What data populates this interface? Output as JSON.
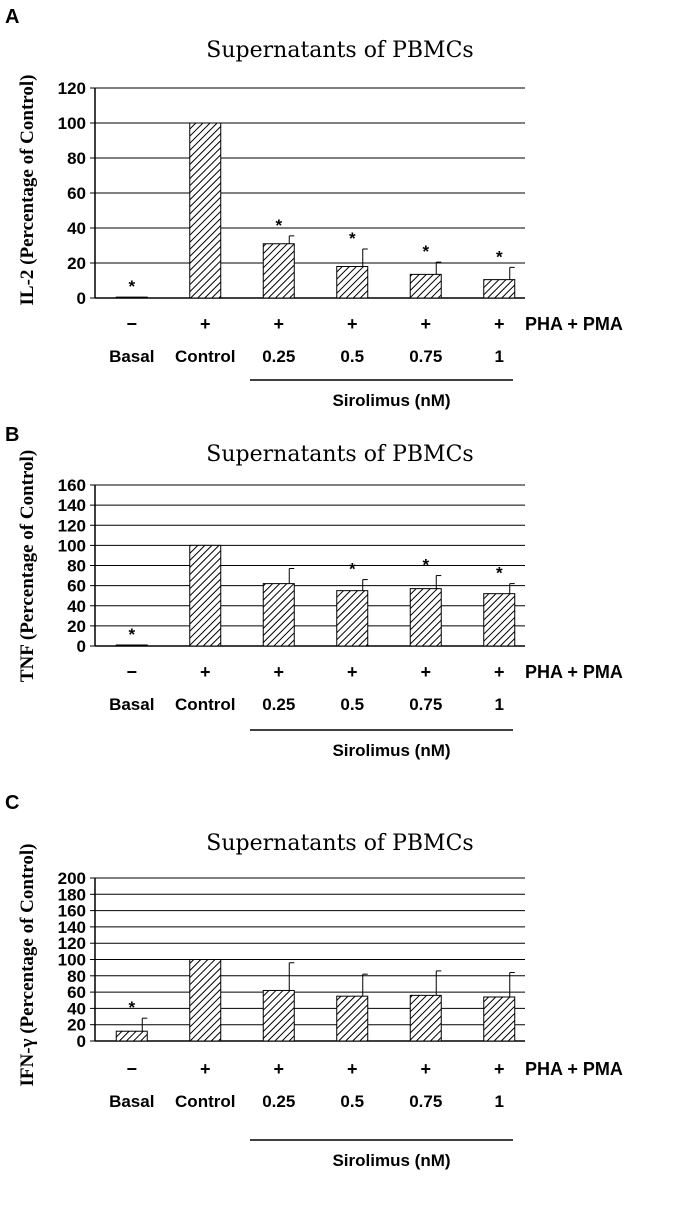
{
  "chart_data": [
    {
      "type": "bar",
      "panel": "A",
      "title": "Supernatants of PBMCs",
      "ylabel": "IL-2 (Percentage of Control)",
      "ylim": [
        0,
        120
      ],
      "yticks": [
        0,
        20,
        40,
        60,
        80,
        100,
        120
      ],
      "categories": [
        "Basal",
        "Control",
        "0.25",
        "0.5",
        "0.75",
        "1"
      ],
      "pha_pma": [
        "−",
        "+",
        "+",
        "+",
        "+",
        "+"
      ],
      "treatment_label": "PHA + PMA",
      "group_label": "Sirolimus (nM)",
      "values": [
        0.5,
        100,
        31,
        18,
        13.5,
        10.5
      ],
      "errors": [
        0,
        0,
        4.5,
        10,
        7,
        7
      ],
      "significant": [
        true,
        false,
        true,
        true,
        true,
        true
      ],
      "grid": true,
      "marker": "*"
    },
    {
      "type": "bar",
      "panel": "B",
      "title": "Supernatants of PBMCs",
      "ylabel": "TNF (Percentage of Control)",
      "ylim": [
        0,
        160
      ],
      "yticks": [
        0,
        20,
        40,
        60,
        80,
        100,
        120,
        140,
        160
      ],
      "categories": [
        "Basal",
        "Control",
        "0.25",
        "0.5",
        "0.75",
        "1"
      ],
      "pha_pma": [
        "−",
        "+",
        "+",
        "+",
        "+",
        "+"
      ],
      "treatment_label": "PHA + PMA",
      "group_label": "Sirolimus (nM)",
      "values": [
        1,
        100,
        62,
        55,
        57,
        52
      ],
      "errors": [
        0,
        0,
        15,
        11,
        13,
        10
      ],
      "significant": [
        true,
        false,
        false,
        true,
        true,
        true
      ],
      "grid": true,
      "marker": "*"
    },
    {
      "type": "bar",
      "panel": "C",
      "title": "Supernatants of PBMCs",
      "ylabel": "IFN-γ (Percentage of Control)",
      "ylim": [
        0,
        200
      ],
      "yticks": [
        0,
        20,
        40,
        60,
        80,
        100,
        120,
        140,
        160,
        180,
        200
      ],
      "categories": [
        "Basal",
        "Control",
        "0.25",
        "0.5",
        "0.75",
        "1"
      ],
      "pha_pma": [
        "−",
        "+",
        "+",
        "+",
        "+",
        "+"
      ],
      "treatment_label": "PHA + PMA",
      "group_label": "Sirolimus (nM)",
      "values": [
        12,
        100,
        62,
        55,
        56,
        54
      ],
      "errors": [
        16,
        0,
        34,
        27,
        30,
        30
      ],
      "significant": [
        true,
        false,
        false,
        false,
        false,
        false
      ],
      "grid": true,
      "marker": "*"
    }
  ]
}
